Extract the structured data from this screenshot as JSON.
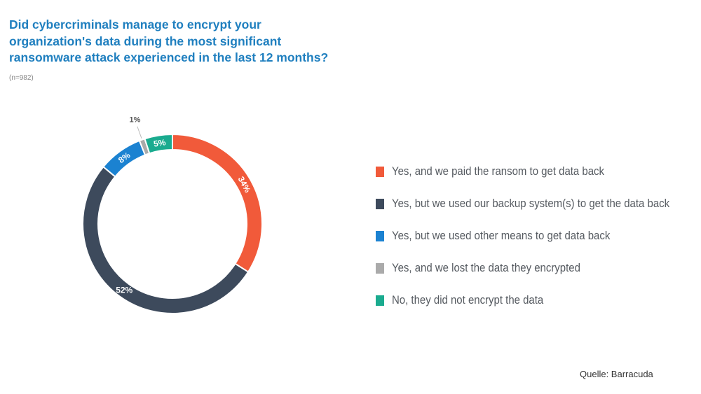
{
  "title_lines": [
    "Did cybercriminals manage to encrypt your",
    "organization's data during the most significant",
    "ransomware attack experienced in the last 12 months?"
  ],
  "sample_size": "(n=982)",
  "source": "Quelle: Barracuda",
  "chart_data": {
    "type": "pie",
    "variant": "donut",
    "title": "Did cybercriminals manage to encrypt your organization's data during the most significant ransomware attack experienced in the last 12 months?",
    "subtitle": "(n=982)",
    "categories": [
      "Yes, and we paid the ransom to get data back",
      "Yes, but we used our backup system(s) to get the data back",
      "Yes, but we used other means to get data back",
      "Yes, and we lost the data they encrypted",
      "No, they did not encrypt the data"
    ],
    "values": [
      34,
      52,
      8,
      1,
      5
    ],
    "labels": [
      "34%",
      "52%",
      "8%",
      "1%",
      "5%"
    ],
    "colors": [
      "#f15a3a",
      "#3d4a5c",
      "#1b82d1",
      "#aaaaaa",
      "#1aab8f"
    ],
    "legend_position": "right",
    "start_angle": "top, clockwise",
    "unit": "%"
  }
}
